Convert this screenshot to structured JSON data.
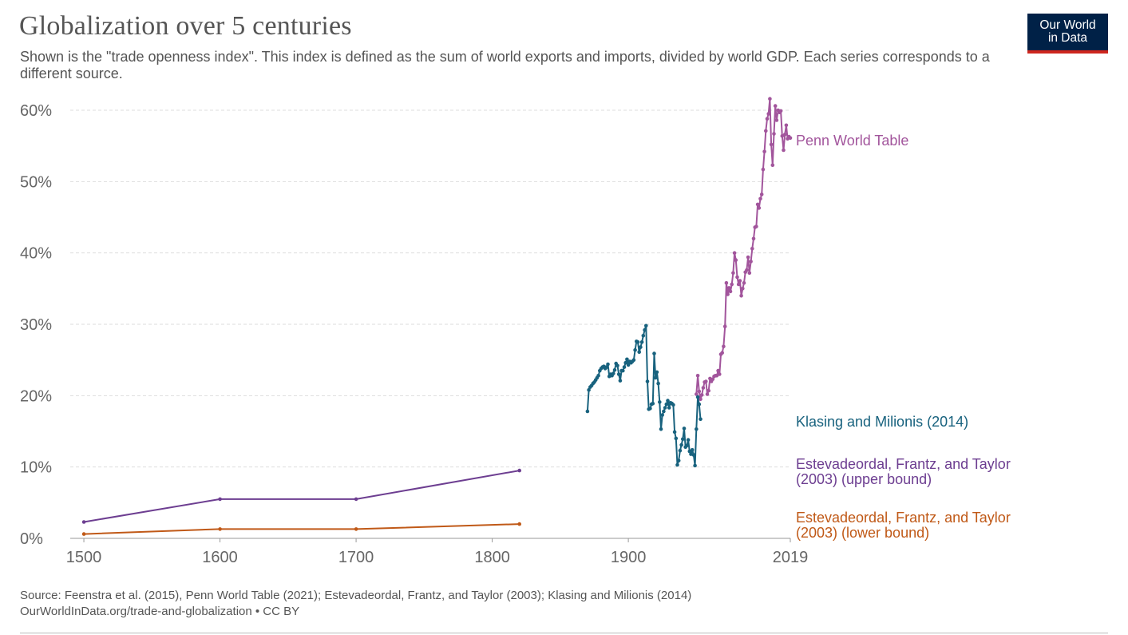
{
  "title": "Globalization over 5 centuries",
  "subtitle": "Shown is the \"trade openness index\". This index is defined as the sum of world exports and imports, divided by world GDP. Each series corresponds to a different source.",
  "logo": {
    "line1": "Our World",
    "line2": "in Data"
  },
  "footer": {
    "source": "Source: Feenstra et al. (2015), Penn World Table (2021); Estevadeordal, Frantz, and Taylor (2003); Klasing and Milionis (2014)",
    "url_license": "OurWorldInData.org/trade-and-globalization • CC BY"
  },
  "chart_data": {
    "type": "line",
    "title": "Globalization over 5 centuries",
    "xlabel": "",
    "ylabel": "",
    "xlim": [
      1490,
      2019
    ],
    "ylim": [
      0,
      60
    ],
    "x_ticks": [
      1500,
      1600,
      1700,
      1800,
      1900,
      2019
    ],
    "y_ticks": [
      0,
      10,
      20,
      30,
      40,
      50,
      60
    ],
    "y_tick_labels": [
      "0%",
      "10%",
      "20%",
      "30%",
      "40%",
      "50%",
      "60%"
    ],
    "grid": "horizontal dashed",
    "legend": "inline labels at right end of series",
    "series": [
      {
        "name": "Penn World Table",
        "color": "#a2559c",
        "points": [
          [
            1950,
            20.2
          ],
          [
            1951,
            22.8
          ],
          [
            1952,
            20.6
          ],
          [
            1953,
            19.5
          ],
          [
            1954,
            20.1
          ],
          [
            1955,
            21.1
          ],
          [
            1956,
            21.9
          ],
          [
            1957,
            22.0
          ],
          [
            1958,
            20.2
          ],
          [
            1959,
            20.7
          ],
          [
            1960,
            22.4
          ],
          [
            1961,
            22.0
          ],
          [
            1962,
            22.3
          ],
          [
            1963,
            22.7
          ],
          [
            1964,
            22.8
          ],
          [
            1965,
            22.8
          ],
          [
            1966,
            23.5
          ],
          [
            1967,
            23.0
          ],
          [
            1968,
            25.8
          ],
          [
            1969,
            26.0
          ],
          [
            1970,
            26.9
          ],
          [
            1971,
            29.7
          ],
          [
            1972,
            35.8
          ],
          [
            1973,
            34.2
          ],
          [
            1974,
            35.1
          ],
          [
            1975,
            34.6
          ],
          [
            1976,
            35.6
          ],
          [
            1977,
            37.2
          ],
          [
            1978,
            40.0
          ],
          [
            1979,
            39.0
          ],
          [
            1980,
            36.6
          ],
          [
            1981,
            35.6
          ],
          [
            1982,
            36.1
          ],
          [
            1983,
            34.0
          ],
          [
            1984,
            35.0
          ],
          [
            1985,
            35.8
          ],
          [
            1986,
            37.3
          ],
          [
            1987,
            37.6
          ],
          [
            1988,
            39.4
          ],
          [
            1989,
            37.2
          ],
          [
            1990,
            38.8
          ],
          [
            1991,
            40.6
          ],
          [
            1992,
            42.0
          ],
          [
            1993,
            43.6
          ],
          [
            1994,
            43.7
          ],
          [
            1995,
            46.8
          ],
          [
            1996,
            46.3
          ],
          [
            1997,
            47.6
          ],
          [
            1998,
            48.2
          ],
          [
            1999,
            51.7
          ],
          [
            2000,
            54.2
          ],
          [
            2001,
            57.1
          ],
          [
            2002,
            58.8
          ],
          [
            2003,
            59.5
          ],
          [
            2004,
            61.6
          ],
          [
            2005,
            55.2
          ],
          [
            2006,
            52.3
          ],
          [
            2007,
            56.7
          ],
          [
            2008,
            60.6
          ],
          [
            2009,
            58.6
          ],
          [
            2010,
            60.0
          ],
          [
            2011,
            59.7
          ],
          [
            2012,
            59.9
          ],
          [
            2013,
            56.4
          ],
          [
            2014,
            54.4
          ],
          [
            2015,
            56.6
          ],
          [
            2016,
            57.9
          ],
          [
            2017,
            56.0
          ],
          [
            2018,
            56.3
          ],
          [
            2019,
            56.1
          ]
        ]
      },
      {
        "name": "Klasing and Milionis (2014)",
        "color": "#18627e",
        "points": [
          [
            1870,
            17.8
          ],
          [
            1871,
            20.8
          ],
          [
            1872,
            21.2
          ],
          [
            1873,
            21.4
          ],
          [
            1874,
            21.7
          ],
          [
            1875,
            21.9
          ],
          [
            1876,
            22.2
          ],
          [
            1877,
            22.5
          ],
          [
            1878,
            22.8
          ],
          [
            1879,
            23.5
          ],
          [
            1880,
            23.8
          ],
          [
            1881,
            24.0
          ],
          [
            1882,
            24.1
          ],
          [
            1883,
            23.8
          ],
          [
            1884,
            24.0
          ],
          [
            1885,
            24.4
          ],
          [
            1886,
            22.7
          ],
          [
            1887,
            23.0
          ],
          [
            1888,
            22.8
          ],
          [
            1889,
            23.1
          ],
          [
            1890,
            23.6
          ],
          [
            1891,
            24.5
          ],
          [
            1892,
            24.2
          ],
          [
            1893,
            23.0
          ],
          [
            1894,
            22.1
          ],
          [
            1895,
            23.5
          ],
          [
            1896,
            23.5
          ],
          [
            1897,
            24.0
          ],
          [
            1898,
            24.6
          ],
          [
            1899,
            25.1
          ],
          [
            1900,
            24.3
          ],
          [
            1901,
            24.8
          ],
          [
            1902,
            24.6
          ],
          [
            1903,
            24.8
          ],
          [
            1904,
            25.0
          ],
          [
            1905,
            26.4
          ],
          [
            1906,
            27.6
          ],
          [
            1907,
            27.5
          ],
          [
            1908,
            26.1
          ],
          [
            1909,
            26.8
          ],
          [
            1910,
            27.5
          ],
          [
            1911,
            28.4
          ],
          [
            1912,
            29.2
          ],
          [
            1913,
            29.8
          ],
          [
            1914,
            22.0
          ],
          [
            1915,
            18.1
          ],
          [
            1916,
            18.2
          ],
          [
            1917,
            18.8
          ],
          [
            1918,
            18.9
          ],
          [
            1919,
            25.9
          ],
          [
            1920,
            22.5
          ],
          [
            1921,
            23.3
          ],
          [
            1922,
            21.7
          ],
          [
            1923,
            19.1
          ],
          [
            1924,
            15.3
          ],
          [
            1925,
            17.3
          ],
          [
            1926,
            17.8
          ],
          [
            1927,
            18.3
          ],
          [
            1928,
            18.8
          ],
          [
            1929,
            19.3
          ],
          [
            1930,
            18.3
          ],
          [
            1931,
            19.0
          ],
          [
            1932,
            18.9
          ],
          [
            1933,
            18.7
          ],
          [
            1934,
            14.9
          ],
          [
            1935,
            14.0
          ],
          [
            1936,
            10.3
          ],
          [
            1937,
            10.9
          ],
          [
            1938,
            12.3
          ],
          [
            1939,
            13.1
          ],
          [
            1940,
            13.9
          ],
          [
            1941,
            15.4
          ],
          [
            1942,
            12.8
          ],
          [
            1943,
            13.0
          ],
          [
            1944,
            13.8
          ],
          [
            1945,
            12.2
          ],
          [
            1946,
            11.8
          ],
          [
            1947,
            12.4
          ],
          [
            1948,
            11.7
          ],
          [
            1949,
            10.2
          ],
          [
            1950,
            15.3
          ],
          [
            1951,
            19.8
          ],
          [
            1952,
            18.8
          ],
          [
            1953,
            16.7
          ]
        ]
      },
      {
        "name": "Estevadeordal, Frantz, and Taylor (2003) (upper bound)",
        "color": "#6d3e91",
        "points": [
          [
            1500,
            2.3
          ],
          [
            1600,
            5.5
          ],
          [
            1700,
            5.5
          ],
          [
            1820,
            9.5
          ]
        ]
      },
      {
        "name": "Estevadeordal, Frantz, and Taylor (2003) (lower bound)",
        "color": "#c05917",
        "points": [
          [
            1500,
            0.6
          ],
          [
            1600,
            1.3
          ],
          [
            1700,
            1.3
          ],
          [
            1820,
            2.0
          ]
        ]
      }
    ]
  }
}
